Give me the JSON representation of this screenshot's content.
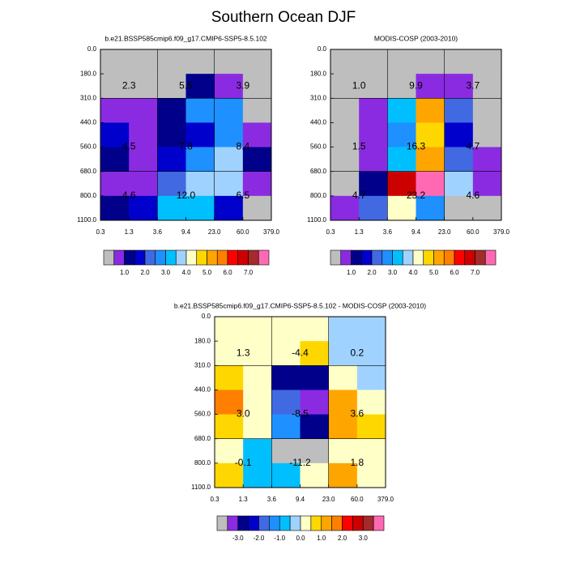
{
  "title": "Southern Ocean DJF",
  "chart_data": [
    {
      "type": "heatmap",
      "title": "b.e21.BSSP585cmip6.f09_g17.CMIP6-SSP5-8.5.102",
      "xticks": [
        0.3,
        1.3,
        3.6,
        9.4,
        {
          "value": 23,
          "label": "23.0"
        },
        {
          "value": 60,
          "label": "60.0"
        },
        {
          "value": 379,
          "label": "379.0"
        }
      ],
      "yticks": [
        {
          "value": 0,
          "label": "0.0"
        },
        {
          "value": 180,
          "label": "180.0"
        },
        {
          "value": 310,
          "label": "310.0"
        },
        {
          "value": 440,
          "label": "440.0"
        },
        {
          "value": 560,
          "label": "560.0"
        },
        {
          "value": 680,
          "label": "680.0"
        },
        {
          "value": 800,
          "label": "800.0"
        },
        {
          "value": 1100,
          "label": "1100.0"
        }
      ],
      "values": [
        [
          0.25,
          0.25,
          0.25,
          0.25,
          0.25,
          0.25
        ],
        [
          0.25,
          0.25,
          0.25,
          1.25,
          0.75,
          0.25
        ],
        [
          0.75,
          0.75,
          1.25,
          2.75,
          2.75,
          0.25
        ],
        [
          1.75,
          0.75,
          1.25,
          1.75,
          2.75,
          0.75
        ],
        [
          1.25,
          0.75,
          1.75,
          2.75,
          3.75,
          1.25
        ],
        [
          0.75,
          0.75,
          2.25,
          3.75,
          3.75,
          0.75
        ],
        [
          1.25,
          1.75,
          3.25,
          3.25,
          1.75,
          0.25
        ]
      ],
      "sums": [
        2.3,
        5.5,
        3.9,
        4.5,
        7.8,
        8.4,
        4.6,
        {
          "value": 12,
          "label": "12.0"
        },
        6.5
      ],
      "levels": [
        0.5,
        1,
        1.5,
        2,
        2.5,
        3,
        3.5,
        4,
        4.5,
        5,
        5.5,
        6,
        6.5,
        7,
        7.5
      ],
      "colors": [
        "#bebebe",
        "#8a2be2",
        "#00008b",
        "#0000cd",
        "#4169e1",
        "#1e90ff",
        "#00bfff",
        "#a0d2ff",
        "#ffffc8",
        "#ffd700",
        "#ffa500",
        "#ff7f00",
        "#ff0000",
        "#cd0000",
        "#a52a2a",
        "#ff69b4"
      ],
      "colorbar_ticks": [
        {
          "value": 1,
          "label": "1.0"
        },
        {
          "value": 2,
          "label": "2.0"
        },
        {
          "value": 3,
          "label": "3.0"
        },
        {
          "value": 4,
          "label": "4.0"
        },
        {
          "value": 5,
          "label": "5.0"
        },
        {
          "value": 6,
          "label": "6.0"
        },
        {
          "value": 7,
          "label": "7.0"
        }
      ]
    },
    {
      "type": "heatmap",
      "title": "MODIS-COSP (2003-2010)",
      "xticks": [
        0.3,
        1.3,
        3.6,
        9.4,
        {
          "value": 23,
          "label": "23.0"
        },
        {
          "value": 60,
          "label": "60.0"
        },
        {
          "value": 379,
          "label": "379.0"
        }
      ],
      "yticks": [
        {
          "value": 0,
          "label": "0.0"
        },
        {
          "value": 180,
          "label": "180.0"
        },
        {
          "value": 310,
          "label": "310.0"
        },
        {
          "value": 440,
          "label": "440.0"
        },
        {
          "value": 560,
          "label": "560.0"
        },
        {
          "value": 680,
          "label": "680.0"
        },
        {
          "value": 800,
          "label": "800.0"
        },
        {
          "value": 1100,
          "label": "1100.0"
        }
      ],
      "values": [
        [
          0.25,
          0.25,
          0.25,
          0.25,
          0.25,
          0.25
        ],
        [
          0.25,
          0.25,
          0.25,
          0.75,
          0.75,
          0.25
        ],
        [
          0.25,
          0.75,
          3.25,
          5.25,
          2.25,
          0.25
        ],
        [
          0.25,
          0.75,
          2.75,
          4.75,
          1.75,
          0.25
        ],
        [
          0.25,
          0.75,
          3.25,
          5.25,
          2.25,
          0.75
        ],
        [
          0.25,
          1.25,
          6.75,
          7.75,
          3.75,
          0.75
        ],
        [
          0.75,
          2.25,
          4.25,
          2.75,
          0.25,
          0.25
        ]
      ],
      "sums": [
        {
          "value": 1,
          "label": "1.0"
        },
        9.9,
        3.7,
        1.5,
        16.3,
        4.7,
        4.7,
        23.2,
        4.6
      ],
      "levels": [
        0.5,
        1,
        1.5,
        2,
        2.5,
        3,
        3.5,
        4,
        4.5,
        5,
        5.5,
        6,
        6.5,
        7,
        7.5
      ],
      "colors": [
        "#bebebe",
        "#8a2be2",
        "#00008b",
        "#0000cd",
        "#4169e1",
        "#1e90ff",
        "#00bfff",
        "#a0d2ff",
        "#ffffc8",
        "#ffd700",
        "#ffa500",
        "#ff7f00",
        "#ff0000",
        "#cd0000",
        "#a52a2a",
        "#ff69b4"
      ],
      "colorbar_ticks": [
        {
          "value": 1,
          "label": "1.0"
        },
        {
          "value": 2,
          "label": "2.0"
        },
        {
          "value": 3,
          "label": "3.0"
        },
        {
          "value": 4,
          "label": "4.0"
        },
        {
          "value": 5,
          "label": "5.0"
        },
        {
          "value": 6,
          "label": "6.0"
        },
        {
          "value": 7,
          "label": "7.0"
        }
      ]
    },
    {
      "type": "heatmap",
      "title": "b.e21.BSSP585cmip6.f09_g17.CMIP6-SSP5-8.5.102 - MODIS-COSP (2003-2010)",
      "xticks": [
        0.3,
        1.3,
        3.6,
        9.4,
        {
          "value": 23,
          "label": "23.0"
        },
        {
          "value": 60,
          "label": "60.0"
        },
        {
          "value": 379,
          "label": "379.0"
        }
      ],
      "yticks": [
        {
          "value": 0,
          "label": "0.0"
        },
        {
          "value": 180,
          "label": "180.0"
        },
        {
          "value": 310,
          "label": "310.0"
        },
        {
          "value": 440,
          "label": "440.0"
        },
        {
          "value": 560,
          "label": "560.0"
        },
        {
          "value": 680,
          "label": "680.0"
        },
        {
          "value": 800,
          "label": "800.0"
        },
        {
          "value": 1100,
          "label": "1100.0"
        }
      ],
      "values": [
        [
          0.25,
          0.25,
          0.25,
          0.25,
          -0.25,
          -0.25
        ],
        [
          0.25,
          0.25,
          0.25,
          0.75,
          -0.25,
          -0.25
        ],
        [
          0.75,
          0.25,
          -2.75,
          -2.75,
          0.25,
          -0.25
        ],
        [
          1.75,
          0.25,
          -1.75,
          -3.25,
          1.25,
          0.25
        ],
        [
          0.75,
          0.25,
          -1.25,
          -2.75,
          1.25,
          0.75
        ],
        [
          0.25,
          -0.75,
          -3.75,
          -3.75,
          0.25,
          0.25
        ],
        [
          0.75,
          -0.75,
          -0.75,
          0.25,
          1.25,
          0.25
        ]
      ],
      "sums": [
        1.3,
        -4.4,
        0.2,
        {
          "value": 3,
          "label": "3.0"
        },
        -8.5,
        3.6,
        -0.1,
        -11.2,
        1.8
      ],
      "levels": [
        -3.5,
        -3,
        -2.5,
        -2,
        -1.5,
        -1,
        -0.5,
        0,
        0.5,
        1,
        1.5,
        2,
        2.5,
        3,
        3.5
      ],
      "colors": [
        "#bebebe",
        "#8a2be2",
        "#00008b",
        "#0000cd",
        "#4169e1",
        "#1e90ff",
        "#00bfff",
        "#a0d2ff",
        "#ffffc8",
        "#ffd700",
        "#ffa500",
        "#ff7f00",
        "#ff0000",
        "#cd0000",
        "#a52a2a",
        "#ff69b4"
      ],
      "colorbar_ticks": [
        {
          "value": -3,
          "label": "-3.0"
        },
        {
          "value": -2,
          "label": "-2.0"
        },
        {
          "value": -1,
          "label": "-1.0"
        },
        {
          "value": 0,
          "label": "0.0"
        },
        {
          "value": 1,
          "label": "1.0"
        },
        {
          "value": 2,
          "label": "2.0"
        },
        {
          "value": 3,
          "label": "3.0"
        }
      ]
    }
  ]
}
